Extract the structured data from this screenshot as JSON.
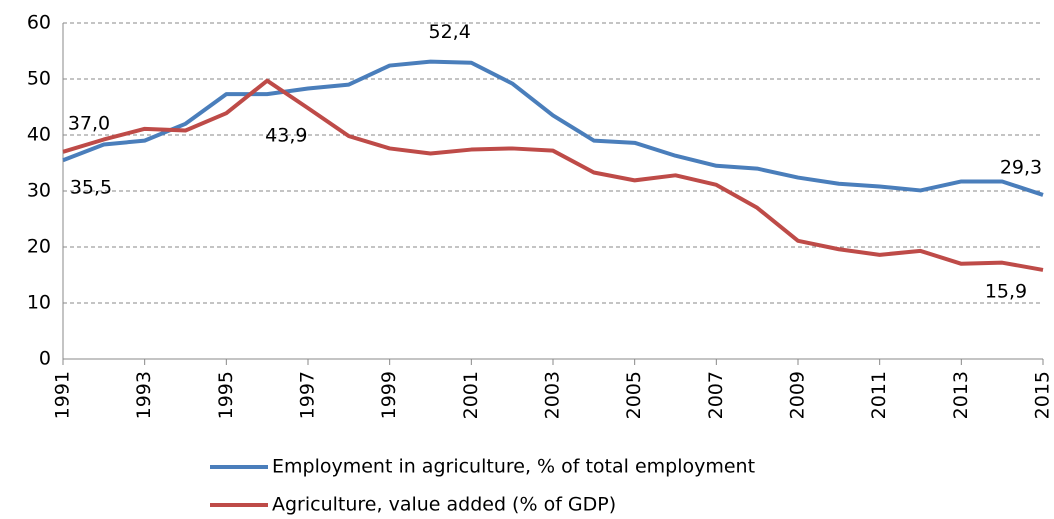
{
  "chart_data": {
    "type": "line",
    "x": [
      1991,
      1992,
      1993,
      1994,
      1995,
      1996,
      1997,
      1998,
      1999,
      2000,
      2001,
      2002,
      2003,
      2004,
      2005,
      2006,
      2007,
      2008,
      2009,
      2010,
      2011,
      2012,
      2013,
      2014,
      2015
    ],
    "series": [
      {
        "name": "Employment in agriculture, % of total employment",
        "color": "#4a7ebb",
        "values": [
          35.5,
          38.3,
          39,
          42,
          47.3,
          47.3,
          48.3,
          49,
          52.4,
          53.1,
          52.9,
          49.2,
          43.5,
          39,
          38.6,
          36.3,
          34.5,
          34,
          32.4,
          31.3,
          30.8,
          30.1,
          31.7,
          31.7,
          29.3
        ],
        "value_labels": [
          "35,5",
          null,
          null,
          null,
          null,
          null,
          null,
          null,
          "52,4",
          null,
          null,
          null,
          null,
          null,
          null,
          null,
          null,
          null,
          null,
          null,
          null,
          null,
          null,
          null,
          "29,3"
        ]
      },
      {
        "name": "Agriculture, value added (% of GDP)",
        "color": "#be4b48",
        "values": [
          37.0,
          39.2,
          41.1,
          40.8,
          43.9,
          49.7,
          44.8,
          39.8,
          37.6,
          36.7,
          37.4,
          37.6,
          37.2,
          33.3,
          31.9,
          32.8,
          31.1,
          27,
          21.1,
          19.6,
          18.6,
          19.3,
          17,
          17.2,
          15.9
        ],
        "value_labels": [
          "37,0",
          null,
          null,
          null,
          "43,9",
          null,
          null,
          null,
          null,
          null,
          null,
          null,
          null,
          null,
          null,
          null,
          null,
          null,
          null,
          null,
          null,
          null,
          null,
          null,
          "15,9"
        ]
      }
    ],
    "xlim": [
      1991,
      2015
    ],
    "xticks": [
      1991,
      1993,
      1995,
      1997,
      1999,
      2001,
      2003,
      2005,
      2007,
      2009,
      2011,
      2013,
      2015
    ],
    "ylim": [
      0,
      60
    ],
    "yticks": [
      0,
      10,
      20,
      30,
      40,
      50,
      60
    ],
    "grid": true
  }
}
